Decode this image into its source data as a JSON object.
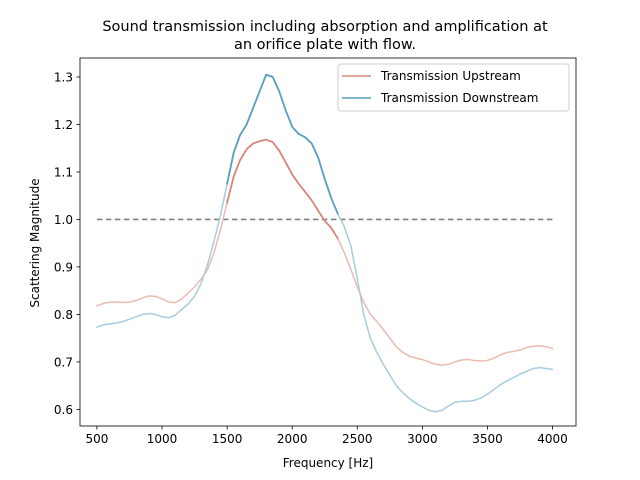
{
  "chart_data": {
    "type": "line",
    "title_lines": [
      "Sound transmission including absorption and amplification at",
      "an orifice plate with flow."
    ],
    "xlabel": "Frequency [Hz]",
    "ylabel": "Scattering Magnitude",
    "xlim": [
      370,
      4180
    ],
    "ylim": [
      0.565,
      1.34
    ],
    "xticks": [
      500,
      1000,
      1500,
      2000,
      2500,
      3000,
      3500,
      4000
    ],
    "yticks": [
      0.6,
      0.7,
      0.8,
      0.9,
      1.0,
      1.1,
      1.2,
      1.3
    ],
    "ytick_labels": [
      "0.6",
      "0.7",
      "0.8",
      "0.9",
      "1.0",
      "1.1",
      "1.2",
      "1.3"
    ],
    "grid": false,
    "legend_position": "upper-right",
    "highlight_range": [
      1500,
      2380
    ],
    "series": [
      {
        "name": "Transmission Upstream",
        "color": "#d6877a",
        "light_color": "#ebbbb1",
        "x": [
          500,
          550,
          600,
          650,
          700,
          750,
          800,
          850,
          900,
          950,
          1000,
          1050,
          1100,
          1150,
          1200,
          1250,
          1300,
          1350,
          1400,
          1450,
          1500,
          1550,
          1600,
          1650,
          1700,
          1750,
          1800,
          1850,
          1900,
          1950,
          2000,
          2050,
          2100,
          2150,
          2200,
          2250,
          2300,
          2350,
          2400,
          2450,
          2500,
          2550,
          2600,
          2650,
          2700,
          2750,
          2800,
          2850,
          2900,
          2950,
          3000,
          3050,
          3100,
          3150,
          3200,
          3250,
          3300,
          3350,
          3400,
          3450,
          3500,
          3550,
          3600,
          3650,
          3700,
          3750,
          3800,
          3850,
          3900,
          3950,
          4000
        ],
        "y": [
          0.818,
          0.823,
          0.826,
          0.826,
          0.825,
          0.826,
          0.829,
          0.835,
          0.839,
          0.838,
          0.833,
          0.826,
          0.825,
          0.832,
          0.845,
          0.858,
          0.874,
          0.895,
          0.93,
          0.98,
          1.035,
          1.09,
          1.125,
          1.148,
          1.16,
          1.165,
          1.168,
          1.163,
          1.145,
          1.12,
          1.095,
          1.075,
          1.058,
          1.04,
          1.018,
          0.997,
          0.982,
          0.96,
          0.93,
          0.895,
          0.858,
          0.825,
          0.8,
          0.785,
          0.768,
          0.75,
          0.732,
          0.72,
          0.712,
          0.708,
          0.705,
          0.7,
          0.695,
          0.693,
          0.695,
          0.7,
          0.704,
          0.705,
          0.703,
          0.702,
          0.703,
          0.708,
          0.715,
          0.72,
          0.722,
          0.725,
          0.73,
          0.733,
          0.734,
          0.732,
          0.728
        ]
      },
      {
        "name": "Transmission Downstream",
        "color": "#5a9ec1",
        "light_color": "#a9cbdf",
        "x": [
          500,
          550,
          600,
          650,
          700,
          750,
          800,
          850,
          900,
          950,
          1000,
          1050,
          1100,
          1150,
          1200,
          1250,
          1300,
          1350,
          1400,
          1450,
          1500,
          1550,
          1600,
          1650,
          1700,
          1750,
          1800,
          1850,
          1900,
          1950,
          2000,
          2050,
          2100,
          2150,
          2200,
          2250,
          2300,
          2350,
          2400,
          2450,
          2500,
          2550,
          2600,
          2650,
          2700,
          2750,
          2800,
          2850,
          2900,
          2950,
          3000,
          3050,
          3100,
          3150,
          3200,
          3250,
          3300,
          3350,
          3400,
          3450,
          3500,
          3550,
          3600,
          3650,
          3700,
          3750,
          3800,
          3850,
          3900,
          3950,
          4000
        ],
        "y": [
          0.773,
          0.778,
          0.78,
          0.782,
          0.785,
          0.79,
          0.795,
          0.8,
          0.802,
          0.8,
          0.795,
          0.793,
          0.798,
          0.81,
          0.822,
          0.838,
          0.865,
          0.905,
          0.955,
          1.01,
          1.075,
          1.14,
          1.178,
          1.2,
          1.235,
          1.27,
          1.305,
          1.3,
          1.27,
          1.23,
          1.195,
          1.18,
          1.173,
          1.16,
          1.13,
          1.085,
          1.045,
          1.012,
          0.985,
          0.945,
          0.875,
          0.8,
          0.75,
          0.72,
          0.695,
          0.672,
          0.65,
          0.635,
          0.623,
          0.613,
          0.605,
          0.598,
          0.595,
          0.598,
          0.607,
          0.615,
          0.617,
          0.617,
          0.619,
          0.624,
          0.632,
          0.642,
          0.652,
          0.66,
          0.667,
          0.674,
          0.68,
          0.686,
          0.688,
          0.686,
          0.684
        ]
      }
    ],
    "reference_line": {
      "y": 1.0,
      "color": "#808080",
      "x_range": [
        500,
        4000
      ]
    }
  }
}
